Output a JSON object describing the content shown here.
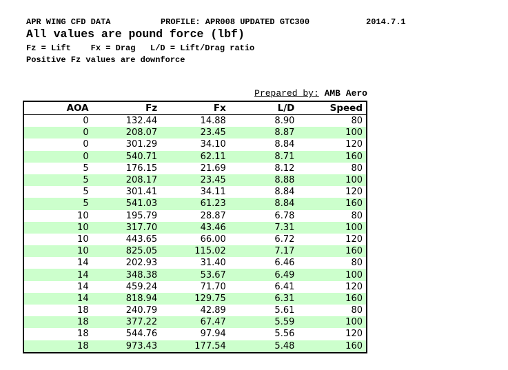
{
  "header": {
    "title_left": "APR WING CFD DATA",
    "title_center": "PROFILE: APR008 UPDATED GTC300",
    "title_right": "2014.7.1",
    "subtitle": "All values are pound force (lbf)",
    "legend": "Fz = Lift    Fx = Drag   L/D = Lift/Drag ratio",
    "note": "Positive Fz values are downforce"
  },
  "prepared_by": {
    "label": "Prepared by:",
    "value": "AMB Aero"
  },
  "table": {
    "columns": [
      "AOA",
      "Fz",
      "Fx",
      "L/D",
      "Speed"
    ],
    "rows": [
      [
        "0",
        "132.44",
        "14.88",
        "8.90",
        "80"
      ],
      [
        "0",
        "208.07",
        "23.45",
        "8.87",
        "100"
      ],
      [
        "0",
        "301.29",
        "34.10",
        "8.84",
        "120"
      ],
      [
        "0",
        "540.71",
        "62.11",
        "8.71",
        "160"
      ],
      [
        "5",
        "176.15",
        "21.69",
        "8.12",
        "80"
      ],
      [
        "5",
        "208.17",
        "23.45",
        "8.88",
        "100"
      ],
      [
        "5",
        "301.41",
        "34.11",
        "8.84",
        "120"
      ],
      [
        "5",
        "541.03",
        "61.23",
        "8.84",
        "160"
      ],
      [
        "10",
        "195.79",
        "28.87",
        "6.78",
        "80"
      ],
      [
        "10",
        "317.70",
        "43.46",
        "7.31",
        "100"
      ],
      [
        "10",
        "443.65",
        "66.00",
        "6.72",
        "120"
      ],
      [
        "10",
        "825.05",
        "115.02",
        "7.17",
        "160"
      ],
      [
        "14",
        "202.93",
        "31.40",
        "6.46",
        "80"
      ],
      [
        "14",
        "348.38",
        "53.67",
        "6.49",
        "100"
      ],
      [
        "14",
        "459.24",
        "71.70",
        "6.41",
        "120"
      ],
      [
        "14",
        "818.94",
        "129.75",
        "6.31",
        "160"
      ],
      [
        "18",
        "240.79",
        "42.89",
        "5.61",
        "80"
      ],
      [
        "18",
        "377.22",
        "67.47",
        "5.59",
        "100"
      ],
      [
        "18",
        "544.76",
        "97.94",
        "5.56",
        "120"
      ],
      [
        "18",
        "973.43",
        "177.54",
        "5.48",
        "160"
      ]
    ]
  },
  "colors": {
    "stripe_green": "#ccffcc",
    "border": "#000000",
    "text": "#000000",
    "background": "#ffffff"
  }
}
